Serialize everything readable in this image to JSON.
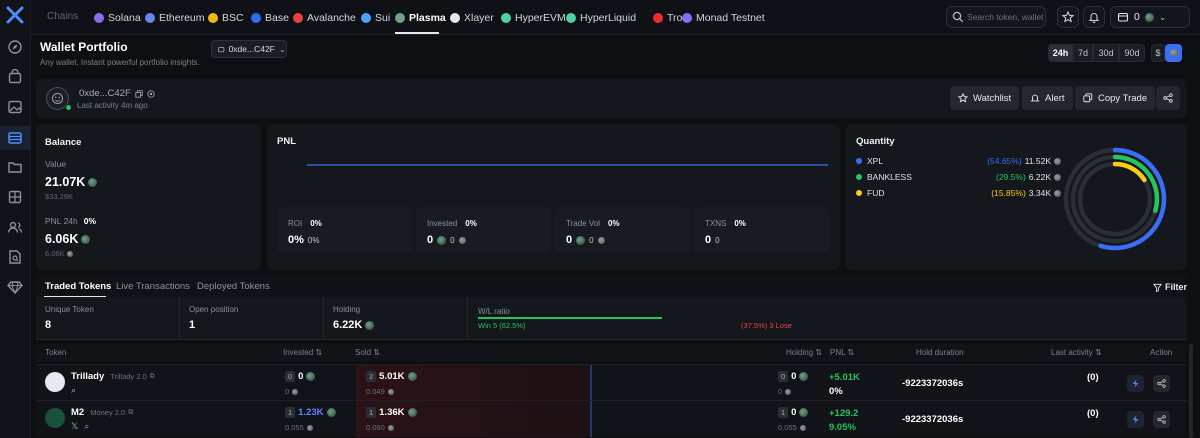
{
  "colors": {
    "accent": "#3b6ef6",
    "green": "#22c55e",
    "red": "#ef4444",
    "yellow": "#facc15"
  },
  "chains": {
    "label": "Chains",
    "items": [
      {
        "label": "Solana",
        "color": "#8c6df0",
        "active": false
      },
      {
        "label": "Ethereum",
        "color": "#6b82f0",
        "active": false
      },
      {
        "label": "BSC",
        "color": "#f0b90b",
        "active": false
      },
      {
        "label": "Base",
        "color": "#2f6bf5",
        "active": false
      },
      {
        "label": "Avalanche",
        "color": "#e84142",
        "active": false
      },
      {
        "label": "Sui",
        "color": "#4da2ff",
        "active": false
      },
      {
        "label": "Plasma",
        "color": "#6fa286",
        "active": true
      },
      {
        "label": "Xlayer",
        "color": "#e5e7eb",
        "active": false
      },
      {
        "label": "HyperEVM",
        "color": "#4fd1a5",
        "active": false
      },
      {
        "label": "HyperLiquid",
        "color": "#4fd1a5",
        "active": false
      },
      {
        "label": "Tron",
        "color": "#ef2c2c",
        "active": false
      },
      {
        "label": "Monad Testnet",
        "color": "#836ef9",
        "active": false
      }
    ]
  },
  "search": {
    "placeholder": "Search token, wallet"
  },
  "wallet_count": "0",
  "header": {
    "title": "Wallet Portfolio",
    "subtitle": "Any wallet. Instant powerful portfolio insights.",
    "address": "0xde...C42F",
    "timeframes": [
      "24h",
      "7d",
      "30d",
      "90d"
    ],
    "active_timeframe": "24h",
    "currency": "$"
  },
  "profile": {
    "name": "0xde...C42F",
    "last_activity": "Last activity 4m ago",
    "buttons": {
      "watchlist": "Watchlist",
      "alert": "Alert",
      "copy_trade": "Copy Trade"
    }
  },
  "balance": {
    "title": "Balance",
    "value_label": "Value",
    "value": "21.07K",
    "value_usd": "$33.29K",
    "pnl_label": "PNL 24h",
    "pnl_pct": "0%",
    "pnl_value": "6.06K",
    "pnl_sub": "6.06K"
  },
  "pnl": {
    "title": "PNL",
    "stats": [
      {
        "label": "ROI",
        "pct": "0%",
        "value": "0%",
        "sub": "0%"
      },
      {
        "label": "Invested",
        "pct": "0%",
        "value": "0",
        "sub": "0"
      },
      {
        "label": "Trade Vol",
        "pct": "0%",
        "value": "0",
        "sub": "0"
      },
      {
        "label": "TXNS",
        "pct": "0%",
        "value": "0",
        "sub": "0"
      }
    ]
  },
  "quantity": {
    "title": "Quantity",
    "items": [
      {
        "name": "XPL",
        "pct": "(54.65%)",
        "value": "11.52K",
        "color": "#3b6ef6",
        "fraction": 0.5465
      },
      {
        "name": "BANKLESS",
        "pct": "(29.5%)",
        "value": "6.22K",
        "color": "#22c55e",
        "fraction": 0.295
      },
      {
        "name": "FUD",
        "pct": "(15.85%)",
        "value": "3.34K",
        "color": "#facc15",
        "fraction": 0.1585
      }
    ]
  },
  "tabs": {
    "items": [
      "Traded Tokens",
      "Live Transactions",
      "Deployed Tokens"
    ],
    "filter": "Filter"
  },
  "summary": {
    "unique_label": "Unique Token",
    "unique_value": "8",
    "open_label": "Open position",
    "open_value": "1",
    "holding_label": "Holding",
    "holding_value": "6.22K",
    "wl_label": "W/L ratio",
    "win_text": "Win 5 (62.5%)",
    "lose_text": "(37.5%) 3 Lose",
    "win_fraction": 0.625
  },
  "table": {
    "headers": {
      "token": "Token",
      "invested": "Invested",
      "sold": "Sold",
      "holding": "Holding",
      "pnl": "PNL",
      "hold_duration": "Hold duration",
      "last_activity": "Last activity",
      "action": "Action"
    },
    "rows": [
      {
        "symbol": "Trillady",
        "name": "Trillady 2.0",
        "invested_count": "0",
        "invested": "0",
        "invested_sub": "0",
        "sold_count": "2",
        "sold": "5.01K",
        "sold_sub": "0.049",
        "holding_count": "0",
        "holding": "0",
        "holding_sub": "0",
        "pnl": "+5.01K",
        "pnl_pct": "0%",
        "hold_duration": "-9223372036s",
        "last_activity": "(0)"
      },
      {
        "symbol": "M2",
        "name": "Money 2.0",
        "invested_count": "1",
        "invested": "1.23K",
        "invested_sub": "0.055",
        "sold_count": "1",
        "sold": "1.36K",
        "sold_sub": "0.060",
        "holding_count": "1",
        "holding": "0",
        "holding_sub": "0.055",
        "pnl": "+129.2",
        "pnl_pct": "9.05%",
        "hold_duration": "-9223372036s",
        "last_activity": "(0)"
      }
    ]
  }
}
